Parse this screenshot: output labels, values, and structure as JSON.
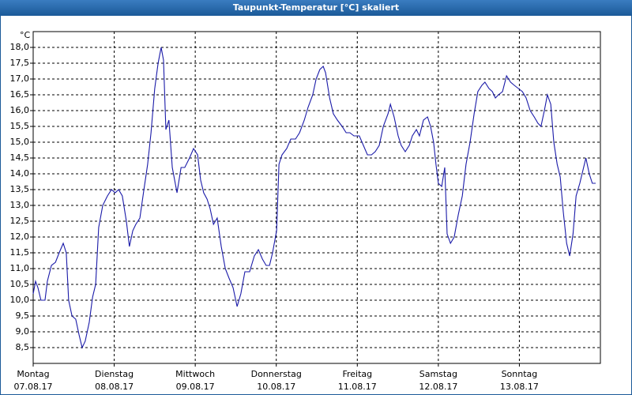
{
  "chart_data": {
    "type": "line",
    "title": "Taupunkt-Temperatur [°C] skaliert",
    "ylabel": "°C",
    "x": [
      0,
      0.7,
      1.4,
      2.3,
      3.5,
      4.2,
      5.4,
      6.6,
      7.7,
      8.9,
      9.8,
      10.5,
      11.5,
      12.6,
      13.6,
      14.5,
      15.4,
      16.6,
      17.6,
      18.5,
      19.4,
      20.6,
      22.0,
      23.2,
      24.3,
      25.3,
      26.4,
      27.6,
      28.5,
      29.5,
      30.4,
      31.6,
      32.8,
      33.9,
      34.9,
      36.0,
      37.0,
      37.9,
      38.6,
      39.3,
      40.2,
      41.2,
      42.6,
      43.8,
      44.9,
      46.3,
      47.5,
      48.7,
      49.6,
      50.5,
      51.5,
      52.4,
      53.4,
      54.5,
      55.7,
      56.9,
      58.0,
      59.2,
      60.4,
      61.5,
      62.7,
      64.1,
      65.5,
      66.7,
      67.9,
      69.0,
      70.0,
      70.9,
      72.1,
      72.8,
      73.7,
      75.1,
      76.3,
      77.7,
      78.9,
      80.3,
      81.4,
      82.8,
      83.8,
      84.9,
      85.9,
      86.6,
      87.8,
      88.9,
      90.1,
      91.5,
      92.7,
      93.8,
      95.0,
      96.6,
      97.8,
      99.0,
      100.2,
      101.3,
      102.5,
      103.7,
      105.1,
      105.8,
      106.9,
      108.1,
      109.0,
      110.2,
      111.4,
      112.3,
      113.5,
      114.4,
      115.6,
      116.8,
      117.7,
      118.6,
      119.3,
      120.0,
      121.0,
      121.9,
      122.6,
      123.6,
      124.7,
      125.9,
      127.1,
      128.2,
      129.4,
      130.6,
      131.7,
      132.9,
      133.8,
      135.0,
      136.0,
      136.9,
      137.8,
      139.0,
      140.2,
      141.4,
      142.5,
      143.7,
      144.9,
      146.0,
      147.2,
      148.4,
      149.5,
      150.4,
      151.4,
      152.3,
      153.3,
      154.2,
      155.2,
      156.1,
      157.0,
      158.0,
      158.9,
      159.9,
      160.8,
      161.9,
      162.8,
      163.7,
      164.7,
      165.6,
      166.6
    ],
    "series": [
      {
        "color": "#1a1aa8",
        "values": [
          10.2,
          10.6,
          10.4,
          10.0,
          10.0,
          10.6,
          11.1,
          11.2,
          11.5,
          11.8,
          11.5,
          10.0,
          9.5,
          9.4,
          8.9,
          8.5,
          8.7,
          9.3,
          10.1,
          10.5,
          12.3,
          13.0,
          13.3,
          13.5,
          13.4,
          13.5,
          13.3,
          12.5,
          11.7,
          12.2,
          12.4,
          12.6,
          13.5,
          14.3,
          15.3,
          16.7,
          17.5,
          18.0,
          17.6,
          15.4,
          15.7,
          14.2,
          13.4,
          14.2,
          14.2,
          14.5,
          14.8,
          14.6,
          13.8,
          13.4,
          13.2,
          12.9,
          12.4,
          12.6,
          11.7,
          11.0,
          10.7,
          10.4,
          9.8,
          10.2,
          10.9,
          10.9,
          11.4,
          11.6,
          11.3,
          11.1,
          11.1,
          11.5,
          12.2,
          14.3,
          14.6,
          14.8,
          15.1,
          15.1,
          15.3,
          15.7,
          16.1,
          16.5,
          17.0,
          17.3,
          17.4,
          17.2,
          16.4,
          15.9,
          15.7,
          15.5,
          15.3,
          15.3,
          15.2,
          15.2,
          14.9,
          14.6,
          14.6,
          14.7,
          14.9,
          15.5,
          15.9,
          16.2,
          15.8,
          15.2,
          14.9,
          14.7,
          14.9,
          15.2,
          15.4,
          15.2,
          15.7,
          15.8,
          15.5,
          15.0,
          14.3,
          13.7,
          13.6,
          14.2,
          12.1,
          11.8,
          12.0,
          12.7,
          13.3,
          14.3,
          15.0,
          15.9,
          16.6,
          16.8,
          16.9,
          16.7,
          16.6,
          16.4,
          16.5,
          16.6,
          17.1,
          16.9,
          16.8,
          16.7,
          16.6,
          16.4,
          16.0,
          15.8,
          15.6,
          15.5,
          16.0,
          16.5,
          16.2,
          15.0,
          14.3,
          13.9,
          12.8,
          11.8,
          11.4,
          12.1,
          13.3,
          13.7,
          14.1,
          14.5,
          14.0,
          13.7,
          13.7
        ]
      }
    ],
    "xlim": [
      0,
      168
    ],
    "xticks": [
      {
        "value": 0,
        "label": [
          "Montag",
          "07.08.17"
        ]
      },
      {
        "value": 24,
        "label": [
          "Dienstag",
          "08.08.17"
        ]
      },
      {
        "value": 48,
        "label": [
          "Mittwoch",
          "09.08.17"
        ]
      },
      {
        "value": 72,
        "label": [
          "Donnerstag",
          "10.08.17"
        ]
      },
      {
        "value": 96,
        "label": [
          "Freitag",
          "11.08.17"
        ]
      },
      {
        "value": 120,
        "label": [
          "Samstag",
          "12.08.17"
        ]
      },
      {
        "value": 144,
        "label": [
          "Sonntag",
          "13.08.17"
        ]
      }
    ],
    "ylim": [
      8,
      18.5
    ],
    "yticks": [
      {
        "value": 8.5,
        "label": "8,5"
      },
      {
        "value": 9,
        "label": "9,0"
      },
      {
        "value": 9.5,
        "label": "9,5"
      },
      {
        "value": 10,
        "label": "10,0"
      },
      {
        "value": 10.5,
        "label": "10,5"
      },
      {
        "value": 11,
        "label": "11,0"
      },
      {
        "value": 11.5,
        "label": "11,5"
      },
      {
        "value": 12,
        "label": "12,0"
      },
      {
        "value": 12.5,
        "label": "12,5"
      },
      {
        "value": 13,
        "label": "13,0"
      },
      {
        "value": 13.5,
        "label": "13,5"
      },
      {
        "value": 14,
        "label": "14,0"
      },
      {
        "value": 14.5,
        "label": "14,5"
      },
      {
        "value": 15,
        "label": "15,0"
      },
      {
        "value": 15.5,
        "label": "15,5"
      },
      {
        "value": 16,
        "label": "16,0"
      },
      {
        "value": 16.5,
        "label": "16,5"
      },
      {
        "value": 17,
        "label": "17,0"
      },
      {
        "value": 17.5,
        "label": "17,5"
      },
      {
        "value": 18,
        "label": "18,0"
      }
    ],
    "grid": true
  }
}
